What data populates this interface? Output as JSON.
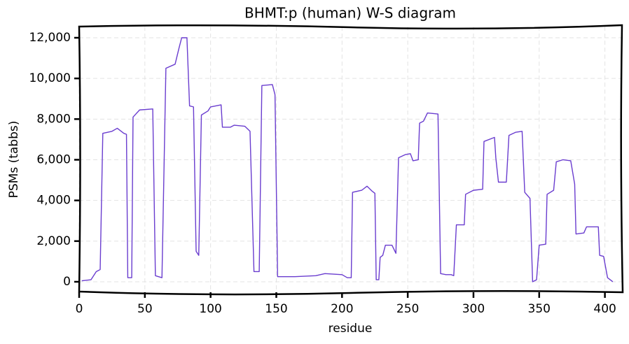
{
  "chart_data": {
    "type": "line",
    "title": "BHMT:p (human) W-S diagram",
    "x_label": "residue",
    "y_label": "PSMs (tabbs)",
    "x": [
      2,
      9,
      13,
      16,
      18,
      25,
      29,
      34,
      36,
      37,
      40,
      41,
      46,
      56,
      58,
      63,
      66,
      73,
      76,
      78,
      82,
      84,
      87,
      89,
      91,
      93,
      98,
      100,
      108,
      109,
      115,
      118,
      126,
      130,
      133,
      137,
      139,
      147,
      149,
      151,
      164,
      180,
      187,
      200,
      204,
      207,
      208,
      215,
      219,
      223,
      225,
      226,
      228,
      229,
      231,
      233,
      238,
      241,
      243,
      248,
      252,
      254,
      258,
      259,
      262,
      265,
      273,
      275,
      279,
      283,
      285,
      287,
      293,
      294,
      300,
      307,
      308,
      316,
      317,
      319,
      325,
      327,
      332,
      337,
      339,
      343,
      345,
      348,
      350,
      355,
      356,
      361,
      363,
      368,
      374,
      377,
      378,
      384,
      386,
      395,
      396,
      399,
      402,
      406
    ],
    "series": [
      {
        "name": "BHMT",
        "color": "#6a3dcf",
        "values": [
          50,
          100,
          500,
          600,
          7300,
          7400,
          7550,
          7300,
          7250,
          200,
          200,
          8100,
          8450,
          8500,
          300,
          200,
          10500,
          10700,
          11500,
          12000,
          12000,
          8650,
          8600,
          1500,
          1300,
          8200,
          8400,
          8600,
          8700,
          7600,
          7600,
          7700,
          7650,
          7400,
          500,
          500,
          9650,
          9700,
          9200,
          250,
          250,
          300,
          400,
          350,
          200,
          200,
          4400,
          4500,
          4700,
          4450,
          4350,
          100,
          100,
          1200,
          1300,
          1800,
          1800,
          1400,
          6100,
          6250,
          6300,
          5950,
          6000,
          7800,
          7900,
          8300,
          8250,
          400,
          350,
          350,
          300,
          2800,
          2800,
          4300,
          4500,
          4550,
          6900,
          7100,
          6100,
          4900,
          4900,
          7200,
          7350,
          7400,
          4400,
          4100,
          0,
          100,
          1800,
          1850,
          4300,
          4500,
          5900,
          6000,
          5950,
          4800,
          2350,
          2400,
          2700,
          2700,
          1300,
          1250,
          200,
          0
        ]
      }
    ],
    "xlim": [
      0,
      413
    ],
    "ylim": [
      -516,
      12550
    ],
    "xticks": [
      0,
      50,
      100,
      150,
      200,
      250,
      300,
      350,
      400
    ],
    "yticks": [
      0,
      {
        "value": 2000,
        "label": "2,000"
      },
      {
        "value": 4000,
        "label": "4,000"
      },
      {
        "value": 6000,
        "label": "6,000"
      },
      {
        "value": 8000,
        "label": "8,000"
      },
      {
        "value": 10000,
        "label": "10,000"
      },
      {
        "value": 12000,
        "label": "12,000"
      }
    ],
    "grid": true
  }
}
